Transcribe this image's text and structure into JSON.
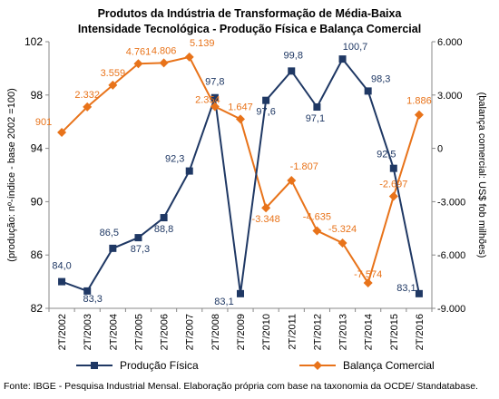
{
  "chart_data": {
    "type": "line",
    "title": "Produtos da Indústria de Transformação de Média-Baixa",
    "subtitle": "Intensidade Tecnológica - Produção Física e Balança Comercial",
    "categories": [
      "2T/2002",
      "2T/2003",
      "2T/2004",
      "2T/2005",
      "2T/2006",
      "2T/2007",
      "2T/2008",
      "2T/2009",
      "2T/2010",
      "2T/2011",
      "2T/2012",
      "2T/2013",
      "2T/2014",
      "2T/2015",
      "2T/2016"
    ],
    "ylabel_left": "(produção: nº-índice - base 2002 =100)",
    "ylabel_right": "(balança comercial: US$ fob milhões)",
    "ylim_left": [
      82,
      102
    ],
    "yticks_left": [
      "82",
      "86",
      "90",
      "94",
      "98",
      "102"
    ],
    "ylim_right": [
      -9000,
      6000
    ],
    "yticks_right": [
      "-9.000",
      "-6.000",
      "-3.000",
      "0",
      "3.000",
      "6.000"
    ],
    "grid": false,
    "legend": "bottom",
    "series": [
      {
        "name": "Produção Física",
        "axis": "left",
        "color": "#1f3864",
        "marker": "square",
        "values": [
          84.0,
          83.3,
          86.5,
          87.3,
          88.8,
          92.3,
          97.8,
          83.1,
          97.6,
          99.8,
          97.1,
          100.7,
          98.3,
          92.5,
          83.1
        ],
        "labels": [
          "84,0",
          "83,3",
          "86,5",
          "87,3",
          "88,8",
          "92,3",
          "97,8",
          "83,1",
          "97,6",
          "99,8",
          "97,1",
          "100,7",
          "98,3",
          "92,5",
          "83,1"
        ]
      },
      {
        "name": "Balança Comercial",
        "axis": "right",
        "color": "#e8731a",
        "marker": "diamond",
        "values": [
          901,
          2332,
          3559,
          4761,
          4806,
          5139,
          2354,
          1647,
          -3348,
          -1807,
          -4635,
          -5324,
          -7574,
          -2697,
          1886
        ],
        "labels": [
          "901",
          "2.332",
          "3.559",
          "4.761",
          "4.806",
          "5.139",
          "2.354",
          "1.647",
          "-3.348",
          "-1.807",
          "-4.635",
          "-5.324",
          "-7.574",
          "-2.697",
          "1.886"
        ]
      }
    ]
  },
  "source": "Fonte: IBGE - Pesquisa Industrial Mensal. Elaboração própria com base na taxonomia da OCDE/ Standatabase."
}
